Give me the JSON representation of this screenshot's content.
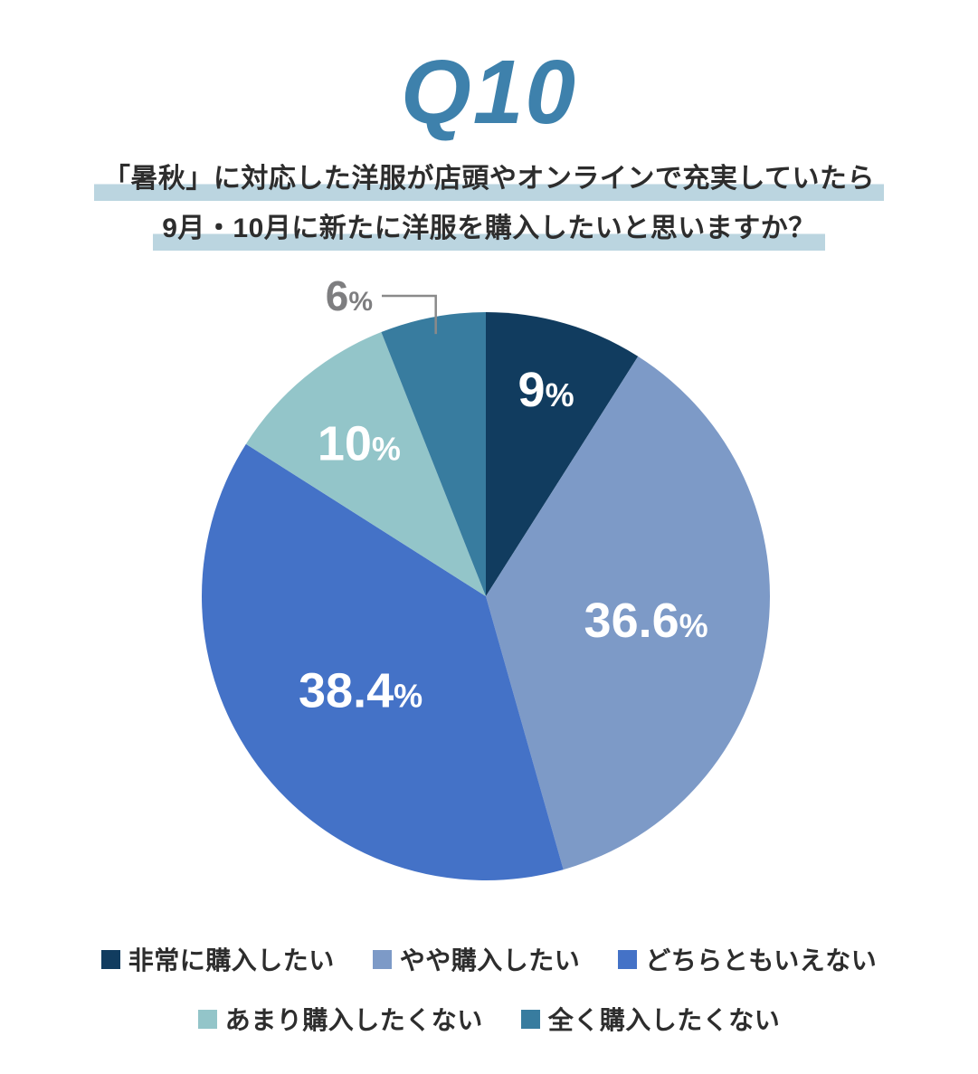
{
  "page": {
    "background": "#FFFFFF"
  },
  "header": {
    "title": "Q10",
    "title_color": "#3E81AC"
  },
  "question": {
    "line1": "「暑秋」に対応した洋服が店頭やオンラインで充実していたら",
    "line2": "9月・10月に新たに洋服を購入したいと思いますか？",
    "text_color": "#2D2D2D",
    "highlight_color": "#BBD5E0"
  },
  "chart_data": {
    "type": "pie",
    "title": "Q10 「暑秋」に対応した洋服が店頭やオンラインで充実していたら9月・10月に新たに洋服を購入したいと思いますか？",
    "start_angle_deg": 0,
    "direction": "clockwise",
    "units": "%",
    "slices": [
      {
        "label": "非常に購入したい",
        "value": 9,
        "display": "9%",
        "color": "#113C5F",
        "label_color": "#FFFFFF",
        "label_r": 0.76,
        "outside": false
      },
      {
        "label": "やや購入したい",
        "value": 36.6,
        "display": "36.6%",
        "color": "#7D9AC7",
        "label_color": "#FFFFFF",
        "label_r": 0.57,
        "outside": false
      },
      {
        "label": "どちらともいえない",
        "value": 38.4,
        "display": "38.4%",
        "color": "#4472C7",
        "label_color": "#FFFFFF",
        "label_r": 0.55,
        "outside": false
      },
      {
        "label": "あまり購入したくない",
        "value": 10,
        "display": "10%",
        "color": "#93C5C9",
        "label_color": "#FFFFFF",
        "label_r": 0.7,
        "outside": false
      },
      {
        "label": "全く購入したくない",
        "value": 6,
        "display": "6%",
        "color": "#387C9F",
        "label_color": "#7E7E80",
        "label_r": 0.94,
        "outside": true
      }
    ],
    "callout_line_color": "#8A8A8A",
    "legend": {
      "position": "bottom",
      "rows": [
        [
          0,
          1,
          2
        ],
        [
          3,
          4
        ]
      ],
      "text_color": "#2D2D2D"
    }
  }
}
